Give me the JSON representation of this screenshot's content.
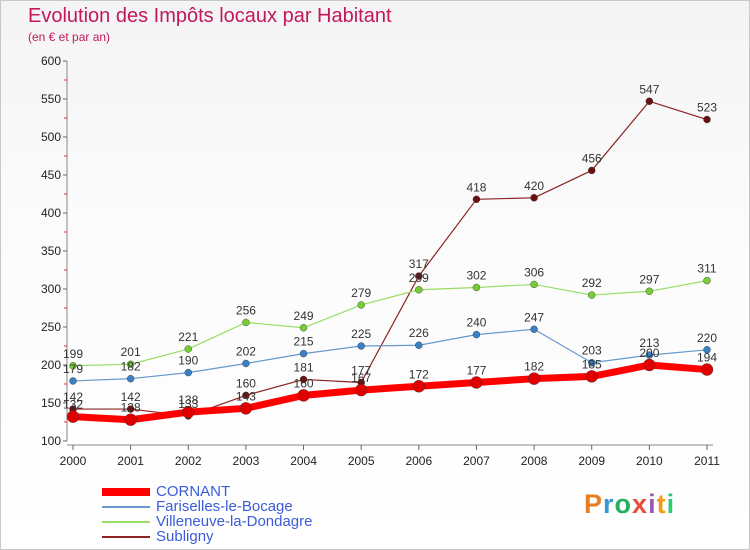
{
  "header": {
    "title": "Evolution des Impôts locaux par Habitant",
    "subtitle": "(en € et par an)"
  },
  "brand": {
    "text": "Proxiti",
    "colors": [
      "#e67e22",
      "#3498db",
      "#27ae60",
      "#e74c3c",
      "#9b59b6",
      "#f39c12",
      "#2ecc71"
    ]
  },
  "chart_data": {
    "type": "line",
    "title": "Evolution des Impôts locaux par Habitant",
    "subtitle": "(en € et par an)",
    "x": [
      2000,
      2001,
      2002,
      2003,
      2004,
      2005,
      2006,
      2007,
      2008,
      2009,
      2010,
      2011
    ],
    "ylim": [
      100,
      600
    ],
    "yticks": [
      100,
      150,
      200,
      250,
      300,
      350,
      400,
      450,
      500,
      550,
      600
    ],
    "grid": false,
    "legend_position": "bottom-left",
    "series": [
      {
        "name": "CORNANT",
        "color": "#ff0000",
        "dot": "#e00000",
        "width": 7,
        "marker": 6,
        "values": [
          132,
          128,
          138,
          143,
          160,
          167,
          172,
          177,
          182,
          185,
          200,
          194
        ]
      },
      {
        "name": "Fariselles-le-Bocage",
        "color": "#6699cc",
        "dot": "#3b7fc4",
        "width": 1.2,
        "marker": 3.5,
        "values": [
          179,
          182,
          190,
          202,
          215,
          225,
          226,
          240,
          247,
          203,
          213,
          220
        ]
      },
      {
        "name": "Villeneuve-la-Dondagre",
        "color": "#99dd66",
        "dot": "#77cc33",
        "width": 1.2,
        "marker": 3.5,
        "values": [
          199,
          201,
          221,
          256,
          249,
          279,
          299,
          302,
          306,
          292,
          297,
          311
        ]
      },
      {
        "name": "Subligny",
        "color": "#8b2323",
        "dot": "#6b1010",
        "width": 1.2,
        "marker": 3.5,
        "values": [
          142,
          142,
          133,
          160,
          181,
          177,
          317,
          418,
          420,
          456,
          547,
          523
        ]
      }
    ],
    "data_labels": [
      [
        132,
        128,
        138,
        143,
        160,
        167,
        172,
        177,
        182,
        185,
        200,
        194
      ],
      [
        179,
        182,
        190,
        202,
        215,
        225,
        226,
        240,
        247,
        203,
        213,
        220
      ],
      [
        199,
        201,
        221,
        256,
        249,
        279,
        299,
        302,
        306,
        292,
        297,
        311
      ],
      [
        142,
        142,
        133,
        160,
        181,
        177,
        317,
        418,
        420,
        456,
        547,
        523
      ]
    ]
  }
}
